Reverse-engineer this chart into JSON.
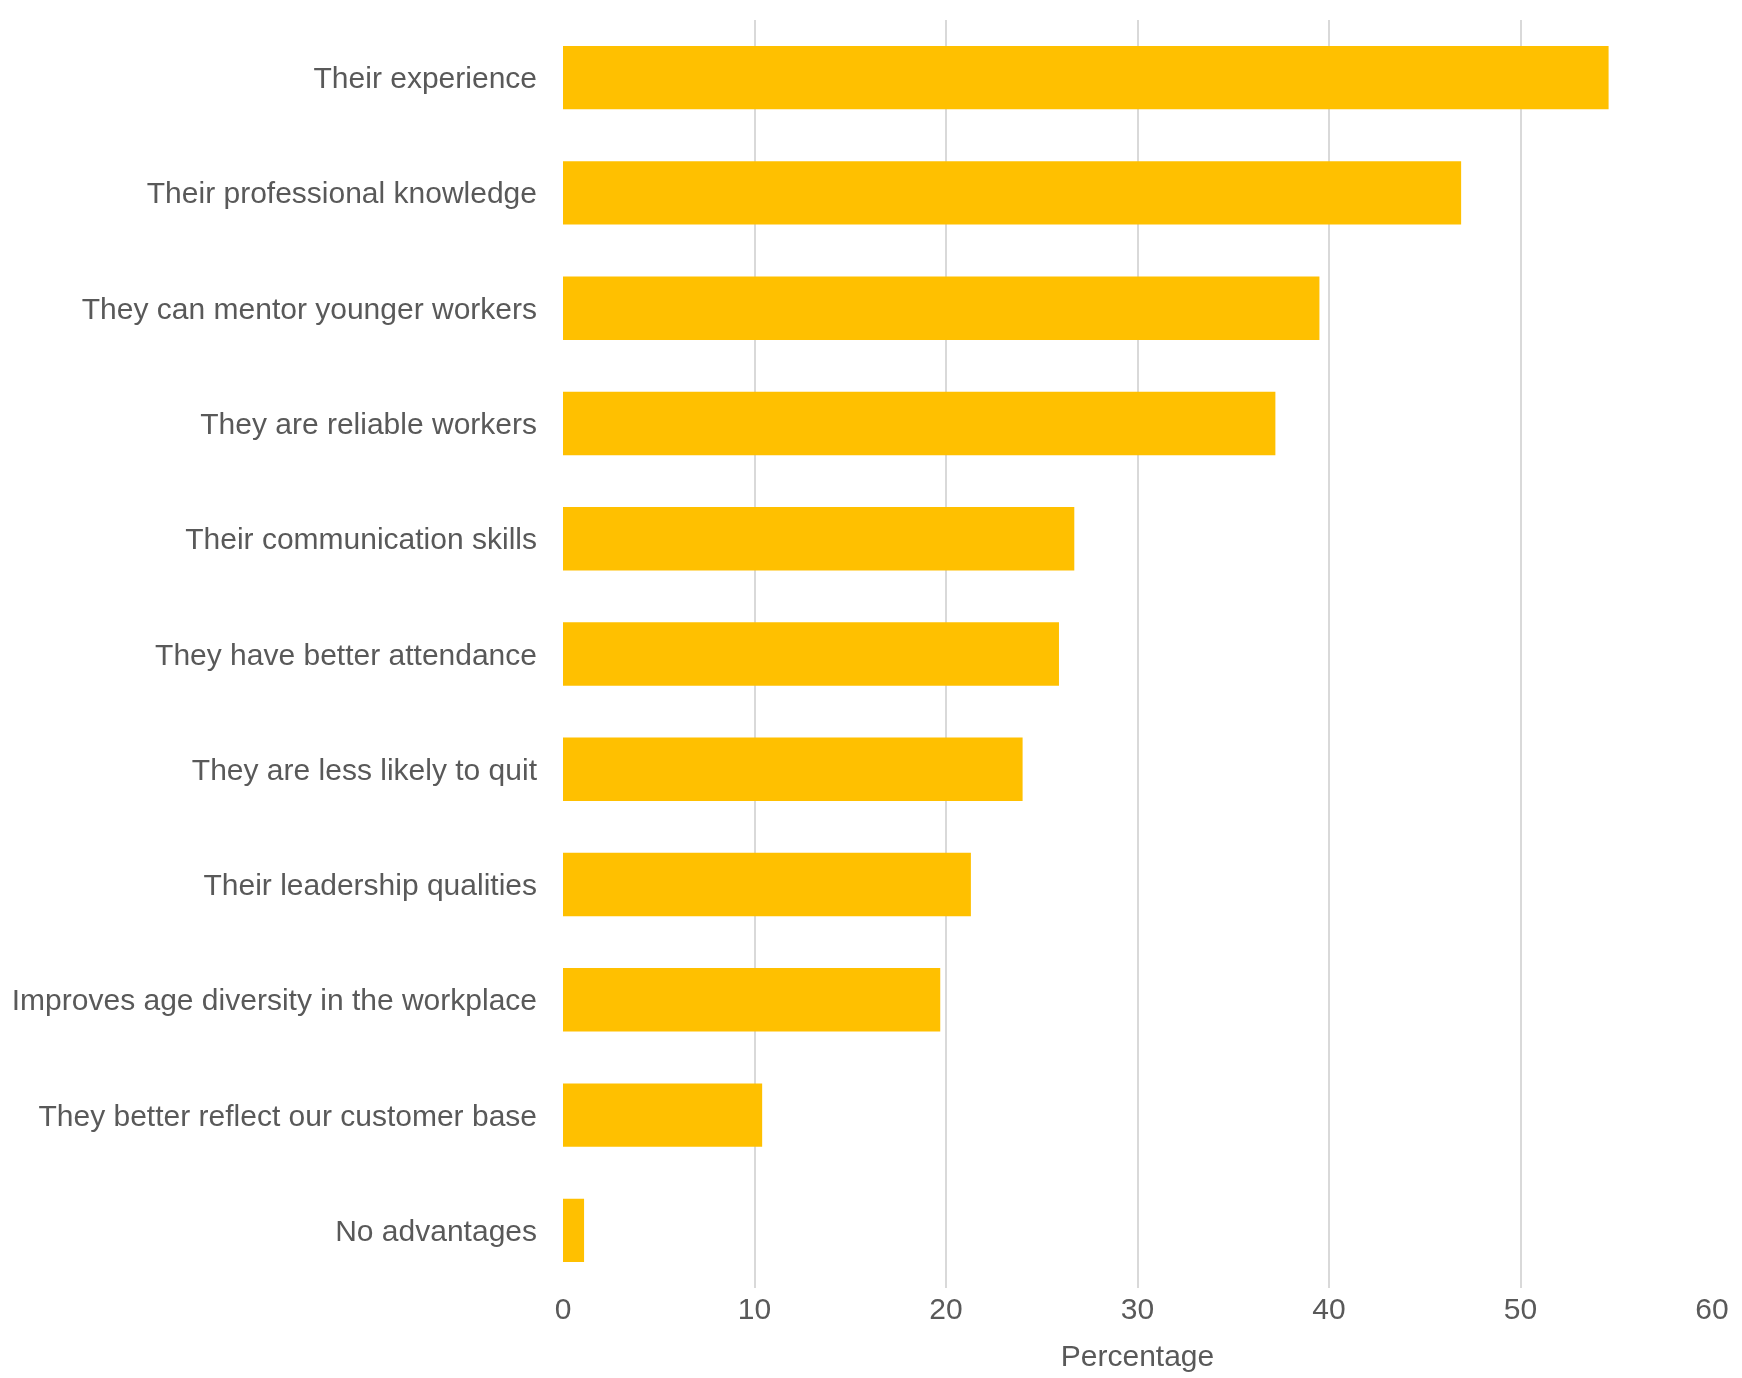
{
  "chart_data": {
    "type": "bar",
    "orientation": "horizontal",
    "xlabel": "Percentage",
    "categories": [
      "Their experience",
      "Their professional knowledge",
      "They can mentor younger workers",
      "They are reliable workers",
      "Their communication skills",
      "They have better attendance",
      "They are less likely to quit",
      "Their leadership qualities",
      "Improves age diversity in the workplace",
      "They better reflect our customer base",
      "No advantages"
    ],
    "values": [
      54.6,
      46.9,
      39.5,
      37.2,
      26.7,
      25.9,
      24.0,
      21.3,
      19.7,
      10.4,
      1.1
    ],
    "color": "#ffc000",
    "xlim": [
      0,
      60
    ],
    "xticks": [
      0,
      10,
      20,
      30,
      40,
      50,
      60
    ],
    "grid": "x"
  }
}
